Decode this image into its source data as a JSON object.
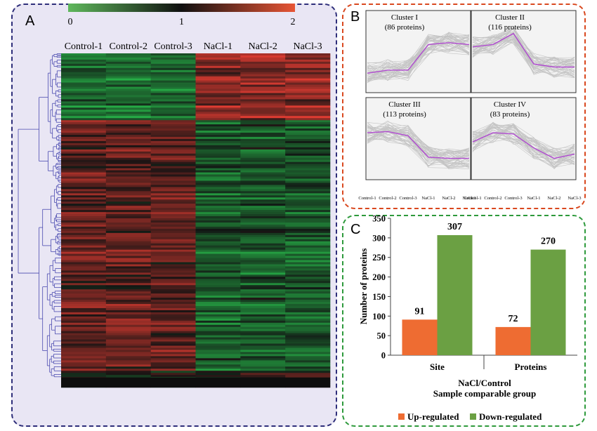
{
  "panels": {
    "a_label": "A",
    "b_label": "B",
    "c_label": "C"
  },
  "chart_data": [
    {
      "panel": "A",
      "type": "heatmap",
      "columns": [
        "Control-1",
        "Control-2",
        "Control-3",
        "NaCl-1",
        "NaCl-2",
        "NaCl-3"
      ],
      "colorbar": {
        "ticks": [
          "0",
          "1",
          "2"
        ],
        "colors": [
          "#5fb85c",
          "#101010",
          "#e85535"
        ]
      },
      "dendrogram": "left"
    },
    {
      "panel": "B",
      "type": "line",
      "x": [
        "Control-1",
        "Control-2",
        "Control-3",
        "NaCl-1",
        "NaCl-2",
        "NaCl-3"
      ],
      "clusters": [
        {
          "name": "Cluster I",
          "count": "(86 proteins)",
          "mean": [
            0.25,
            0.3,
            0.3,
            0.72,
            0.75,
            0.72
          ]
        },
        {
          "name": "Cluster II",
          "count": "(116 proteins)",
          "mean": [
            0.68,
            0.72,
            0.9,
            0.4,
            0.35,
            0.35
          ]
        },
        {
          "name": "Cluster III",
          "count": "(113 proteins)",
          "mean": [
            0.7,
            0.72,
            0.65,
            0.3,
            0.28,
            0.28
          ]
        },
        {
          "name": "Cluster IV",
          "count": "(83 proteins)",
          "mean": [
            0.55,
            0.7,
            0.68,
            0.45,
            0.28,
            0.35
          ]
        }
      ]
    },
    {
      "panel": "C",
      "type": "bar",
      "categories": [
        "Site",
        "Proteins"
      ],
      "series": [
        {
          "name": "Up-regulated",
          "color": "#ee6c32",
          "values": [
            91,
            72
          ]
        },
        {
          "name": "Down-regulated",
          "color": "#6ba043",
          "values": [
            307,
            270
          ]
        }
      ],
      "xlabel_line1": "NaCl/Control",
      "xlabel_line2": "Sample comparable group",
      "ylabel": "Number of proteins",
      "ylim": [
        0,
        350
      ],
      "yticks": [
        "0",
        "50",
        "100",
        "150",
        "200",
        "250",
        "300",
        "350"
      ],
      "legend_position": "bottom"
    }
  ]
}
